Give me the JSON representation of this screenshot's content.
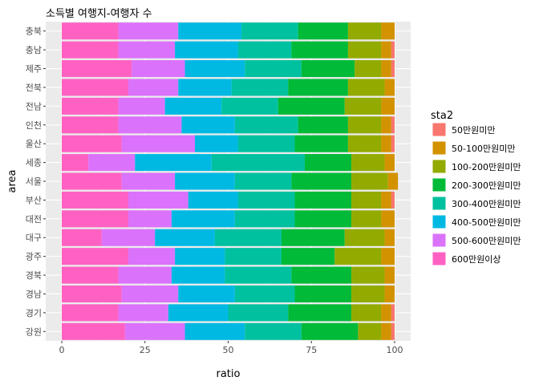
{
  "chart_data": {
    "type": "bar",
    "orientation": "horizontal",
    "stacked": true,
    "title": "소득별 여행지-여행자 수",
    "xlabel": "ratio",
    "ylabel": "area",
    "xlim": [
      0,
      100
    ],
    "xticks": [
      0,
      25,
      50,
      75,
      100
    ],
    "grid": true,
    "legend_position": "right",
    "legend_title": "sta2",
    "categories": [
      "충북",
      "충남",
      "제주",
      "전북",
      "전남",
      "인천",
      "울산",
      "세종",
      "서울",
      "부산",
      "대전",
      "대구",
      "광주",
      "경북",
      "경남",
      "경기",
      "강원"
    ],
    "series": [
      {
        "name": "600만원이상",
        "color": "#FF61C3",
        "values": [
          17,
          17,
          21,
          20,
          17,
          17,
          18,
          8,
          18,
          20,
          20,
          12,
          20,
          17,
          18,
          17,
          19
        ]
      },
      {
        "name": "500-600만원미만",
        "color": "#DB72FB",
        "values": [
          18,
          17,
          16,
          15,
          14,
          19,
          22,
          14,
          16,
          18,
          13,
          16,
          14,
          16,
          17,
          15,
          18
        ]
      },
      {
        "name": "400-500만원미만",
        "color": "#00B9E3",
        "values": [
          19,
          19,
          18,
          16,
          17,
          16,
          13,
          23,
          18,
          15,
          19,
          18,
          15,
          16,
          17,
          18,
          18
        ]
      },
      {
        "name": "300-400만원미만",
        "color": "#00C19F",
        "values": [
          17,
          16,
          17,
          17,
          17,
          19,
          17,
          28,
          17,
          17,
          18,
          20,
          17,
          20,
          18,
          18,
          17
        ]
      },
      {
        "name": "200-300만원미만",
        "color": "#00BA38",
        "values": [
          15,
          17,
          16,
          18,
          20,
          15,
          16,
          14,
          18,
          17,
          17,
          19,
          16,
          18,
          17,
          19,
          17
        ]
      },
      {
        "name": "100-200만원미만",
        "color": "#93AA00",
        "values": [
          10,
          10,
          8,
          11,
          11,
          10,
          10,
          10,
          11,
          9,
          9,
          12,
          14,
          10,
          10,
          9,
          7
        ]
      },
      {
        "name": "50-100만원미만",
        "color": "#D39200",
        "values": [
          4,
          3,
          3,
          3,
          4,
          3,
          3,
          3,
          3,
          3,
          4,
          3,
          4,
          3,
          3,
          3,
          3
        ]
      },
      {
        "name": "50만원미만",
        "color": "#F8766D",
        "values": [
          0,
          1,
          1,
          0,
          0,
          1,
          1,
          0,
          0,
          1,
          0,
          0,
          0,
          0,
          0,
          1,
          1
        ]
      }
    ],
    "legend_order": [
      "50만원미만",
      "50-100만원미만",
      "100-200만원미만",
      "200-300만원미만",
      "300-400만원미만",
      "400-500만원미만",
      "500-600만원미만",
      "600만원이상"
    ]
  },
  "colors": {
    "panel_background": "#EBEBEB",
    "grid_major": "#FFFFFF"
  }
}
